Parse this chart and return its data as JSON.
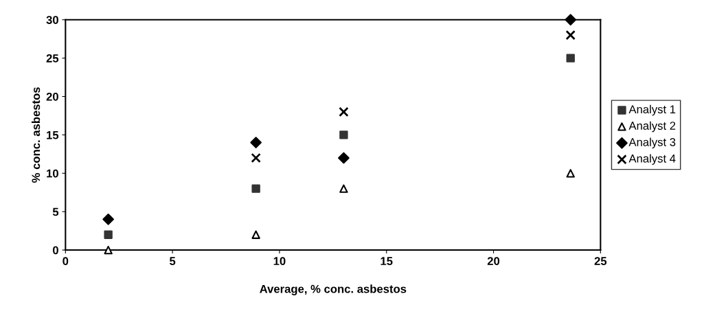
{
  "chart_data": {
    "type": "scatter",
    "xlabel": "Average, % conc. asbestos",
    "ylabel": "% conc. asbestos",
    "x": [
      2.0,
      8.9,
      13.0,
      23.6
    ],
    "series": [
      {
        "name": "Analyst 1",
        "color": "#333333",
        "marker": "square",
        "values": [
          2,
          8,
          15,
          25
        ]
      },
      {
        "name": "Analyst 2",
        "color": "#000000",
        "marker": "triangle",
        "values": [
          0,
          2,
          8,
          10
        ]
      },
      {
        "name": "Analyst 3",
        "color": "#000000",
        "marker": "diamond",
        "values": [
          4,
          14,
          12,
          30
        ]
      },
      {
        "name": "Analyst 4",
        "color": "#000000",
        "marker": "cross",
        "values": [
          null,
          12,
          18,
          28
        ]
      }
    ],
    "xlim": [
      0,
      25
    ],
    "xticks": [
      0,
      5,
      10,
      15,
      20,
      25
    ],
    "ylim": [
      0,
      30
    ],
    "yticks": [
      0,
      5,
      10,
      15,
      20,
      25,
      30
    ],
    "grid": false,
    "legend": "right"
  }
}
